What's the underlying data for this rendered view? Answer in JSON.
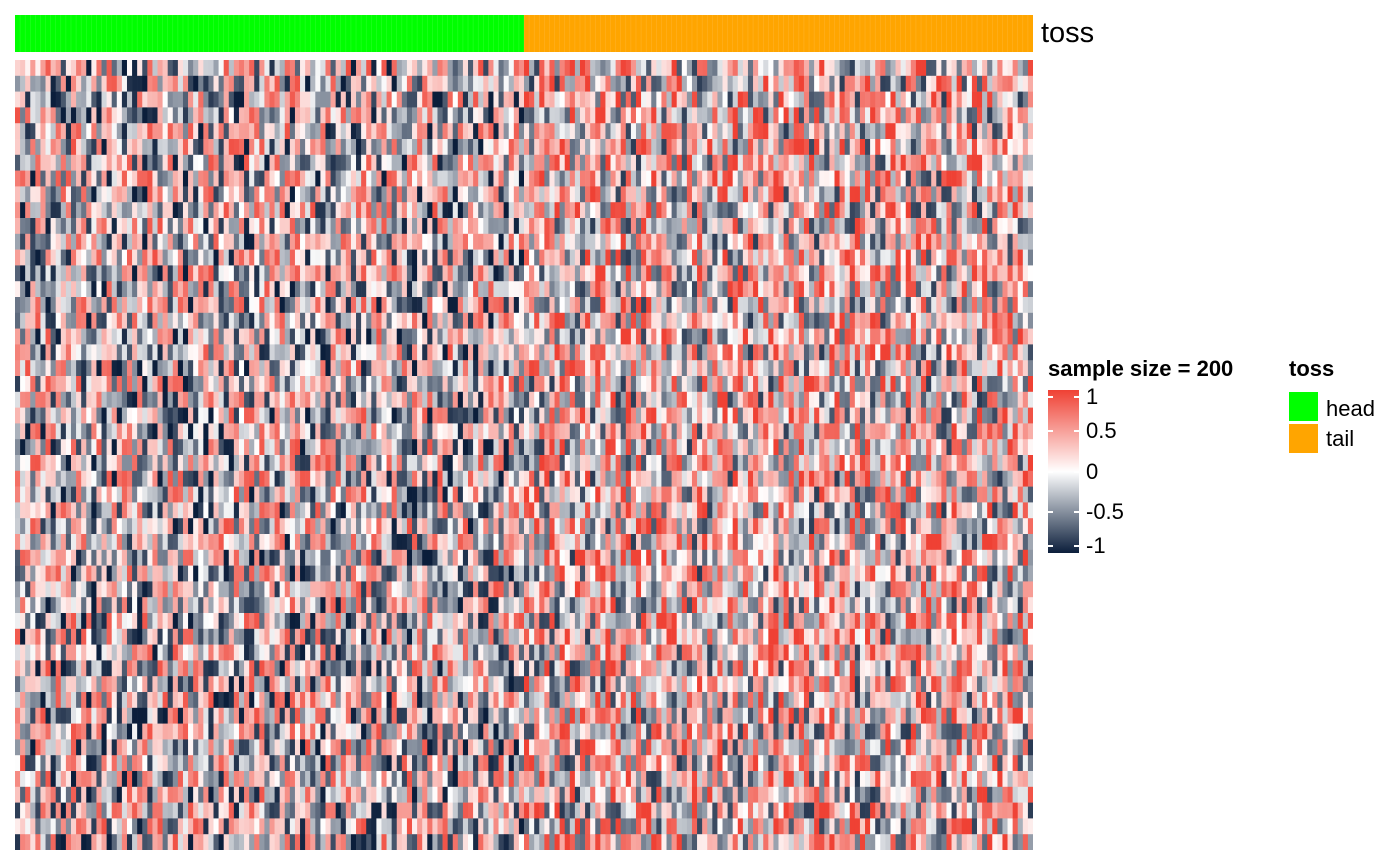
{
  "chart_data": {
    "type": "heatmap",
    "n_columns": 200,
    "n_rows": 50,
    "value_range": [
      -1,
      1
    ],
    "color_scale": {
      "low": "#0b1e3b",
      "mid": "#ffffff",
      "high": "#ef4134"
    },
    "annotation": {
      "name": "toss",
      "groups": [
        {
          "label": "head",
          "count": 100,
          "color": "#00ff00"
        },
        {
          "label": "tail",
          "count": 100,
          "color": "#ffa500"
        }
      ]
    },
    "legend": {
      "title": "sample size = 200",
      "ticks": [
        "1",
        "0.5",
        "0",
        "-0.5",
        "-1"
      ],
      "tick_values": [
        1,
        0.5,
        0,
        -0.5,
        -1
      ]
    }
  }
}
